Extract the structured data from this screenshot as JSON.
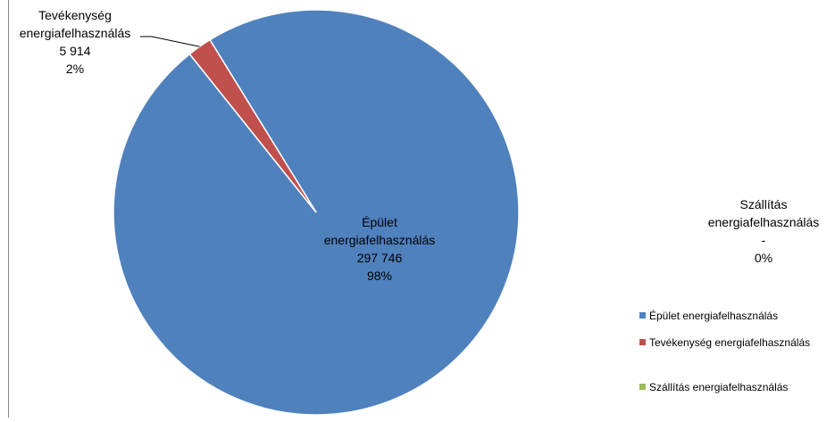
{
  "chart_data": {
    "type": "pie",
    "title": "",
    "categories": [
      "Épület energiafelhasználás",
      "Tevékenység energiafelhasználás",
      "Szállítás energiafelhasználás"
    ],
    "values": [
      297746,
      5914,
      0
    ],
    "colors": [
      "#4F81BD",
      "#C0504D",
      "#9BBB59"
    ],
    "slices": [
      {
        "label_lines": [
          "Épület",
          "energiafelhasználás"
        ],
        "value_text": "297 746",
        "percent_text": "98%"
      },
      {
        "label_lines": [
          "Tevékenység",
          "energiafelhasználás"
        ],
        "value_text": "5 914",
        "percent_text": "2%"
      },
      {
        "label_lines": [
          "Szállítás",
          "energiafelhasználás"
        ],
        "value_text": "-",
        "percent_text": "0%"
      }
    ],
    "legend": {
      "placement": "right",
      "entries": [
        "Épület energiafelhasználás",
        "Tevékenység energiafelhasználás",
        "Szállítás energiafelhasználás"
      ]
    }
  }
}
